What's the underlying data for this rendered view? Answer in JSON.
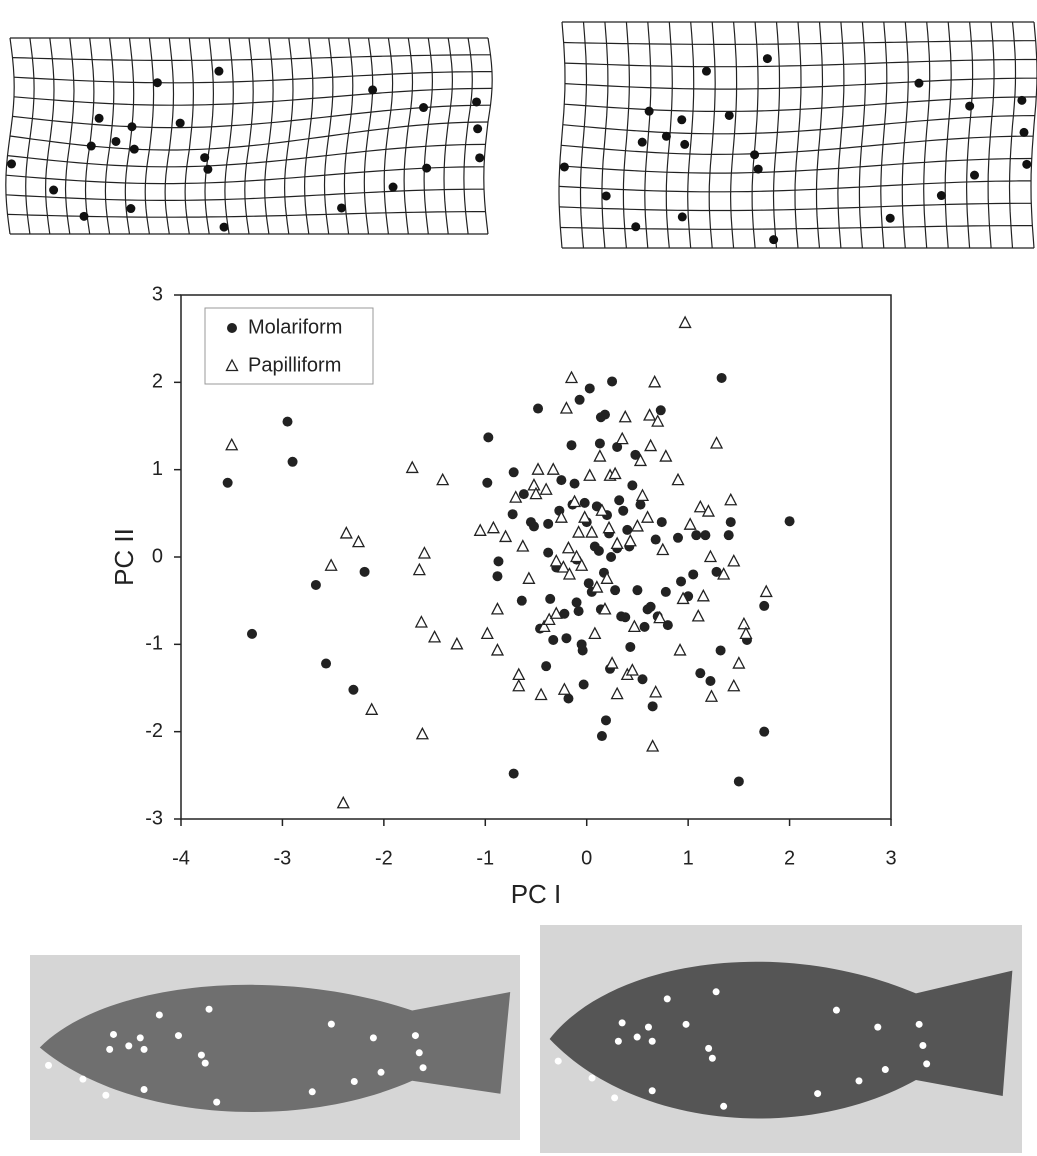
{
  "chart_data": {
    "type": "scatter",
    "x_label": "PC I",
    "y_label": "PC II",
    "xlim": [
      -4,
      3
    ],
    "ylim": [
      -3,
      3
    ],
    "xticks": [
      -4,
      -3,
      -2,
      -1,
      0,
      1,
      2,
      3
    ],
    "yticks": [
      -3,
      -2,
      -1,
      0,
      1,
      2,
      3
    ],
    "legend": "upper-left",
    "series": [
      {
        "name": "Molariform",
        "color": "#222222",
        "marker": "circle",
        "x": [
          -3.54,
          -2.95,
          -2.9,
          -3.3,
          -2.67,
          -2.57,
          -2.3,
          -2.19,
          -0.97,
          -0.98,
          -0.87,
          -0.88,
          -0.72,
          -0.73,
          -0.72,
          -0.64,
          -0.62,
          -0.55,
          -0.52,
          -0.48,
          -0.46,
          -0.4,
          -0.38,
          -0.38,
          -0.36,
          -0.33,
          -0.3,
          -0.27,
          -0.25,
          -0.22,
          -0.2,
          -0.18,
          -0.15,
          -0.14,
          -0.12,
          -0.1,
          -0.1,
          -0.08,
          -0.07,
          -0.05,
          -0.04,
          -0.03,
          -0.02,
          0.0,
          0.02,
          0.03,
          0.05,
          0.08,
          0.1,
          0.12,
          0.13,
          0.14,
          0.14,
          0.15,
          0.17,
          0.18,
          0.19,
          0.2,
          0.22,
          0.24,
          0.25,
          0.23,
          0.28,
          0.3,
          0.3,
          0.32,
          0.34,
          0.36,
          0.38,
          0.4,
          0.42,
          0.43,
          0.45,
          0.48,
          0.5,
          0.53,
          0.55,
          0.57,
          0.6,
          0.63,
          0.65,
          0.68,
          0.7,
          0.73,
          0.74,
          0.78,
          0.8,
          0.9,
          0.93,
          1.0,
          1.05,
          1.08,
          1.12,
          1.17,
          1.22,
          1.28,
          1.33,
          1.32,
          1.4,
          1.42,
          1.5,
          1.58,
          1.75,
          1.75,
          2.0
        ],
        "values": [
          0.85,
          1.55,
          1.09,
          -0.88,
          -0.32,
          -1.22,
          -1.52,
          -0.17,
          1.37,
          0.85,
          -0.05,
          -0.22,
          0.97,
          0.49,
          -2.48,
          -0.5,
          0.72,
          0.4,
          0.35,
          1.7,
          -0.82,
          -1.25,
          0.38,
          0.05,
          -0.48,
          -0.95,
          -0.12,
          0.53,
          0.88,
          -0.65,
          -0.93,
          -1.62,
          1.28,
          0.6,
          0.84,
          -0.52,
          -0.03,
          -0.62,
          1.8,
          -1.0,
          -1.07,
          -1.46,
          0.62,
          0.4,
          -0.3,
          1.93,
          -0.4,
          0.12,
          0.58,
          0.07,
          1.3,
          1.6,
          -0.6,
          -2.05,
          -0.18,
          1.63,
          -1.87,
          0.48,
          0.27,
          0.0,
          2.01,
          -1.28,
          -0.38,
          0.1,
          1.26,
          0.65,
          -0.68,
          0.53,
          -0.69,
          0.31,
          0.12,
          -1.03,
          0.82,
          1.17,
          -0.38,
          0.6,
          -1.4,
          -0.8,
          -0.6,
          -0.57,
          -1.71,
          0.2,
          -0.68,
          1.68,
          0.4,
          -0.4,
          -0.78,
          0.22,
          -0.28,
          -0.45,
          -0.2,
          0.25,
          -1.33,
          0.25,
          -1.42,
          -0.17,
          2.05,
          -1.07,
          0.25,
          0.4,
          -2.57,
          -0.95,
          -0.56,
          -2.0,
          0.41
        ]
      },
      {
        "name": "Papilliform",
        "color": "#222222",
        "marker": "triangle",
        "x": [
          -3.5,
          -2.37,
          -2.4,
          -2.52,
          -2.25,
          -2.12,
          -1.72,
          -1.65,
          -1.63,
          -1.6,
          -1.62,
          -1.5,
          -1.42,
          -1.28,
          -1.05,
          -0.98,
          -0.92,
          -0.88,
          -0.88,
          -0.8,
          -0.7,
          -0.67,
          -0.67,
          -0.63,
          -0.57,
          -0.52,
          -0.5,
          -0.48,
          -0.45,
          -0.42,
          -0.4,
          -0.37,
          -0.33,
          -0.3,
          -0.3,
          -0.25,
          -0.23,
          -0.22,
          -0.2,
          -0.18,
          -0.17,
          -0.15,
          -0.12,
          -0.1,
          -0.08,
          -0.05,
          -0.02,
          0.03,
          0.05,
          0.08,
          0.1,
          0.13,
          0.15,
          0.18,
          0.2,
          0.22,
          0.23,
          0.25,
          0.28,
          0.3,
          0.3,
          0.35,
          0.38,
          0.4,
          0.43,
          0.45,
          0.47,
          0.5,
          0.53,
          0.55,
          0.6,
          0.62,
          0.63,
          0.65,
          0.67,
          0.68,
          0.7,
          0.72,
          0.75,
          0.78,
          0.9,
          0.92,
          0.95,
          0.97,
          1.02,
          1.1,
          1.12,
          1.15,
          1.2,
          1.22,
          1.23,
          1.28,
          1.35,
          1.42,
          1.45,
          1.5,
          1.55,
          1.57,
          1.77,
          1.45
        ],
        "values": [
          1.28,
          0.27,
          -2.82,
          -0.1,
          0.17,
          -1.75,
          1.02,
          -0.15,
          -0.75,
          0.04,
          -2.03,
          -0.92,
          0.88,
          -1.0,
          0.3,
          -0.88,
          0.33,
          -0.6,
          -1.07,
          0.23,
          0.68,
          -1.35,
          -1.48,
          0.12,
          -0.25,
          0.82,
          0.72,
          1.0,
          -1.58,
          -0.8,
          0.77,
          -0.72,
          1.0,
          -0.65,
          -0.05,
          0.45,
          -0.12,
          -1.52,
          1.7,
          0.1,
          -0.2,
          2.05,
          0.63,
          0.0,
          0.28,
          -0.1,
          0.45,
          0.93,
          0.28,
          -0.88,
          -0.35,
          1.15,
          0.53,
          -0.6,
          -0.25,
          0.33,
          0.93,
          -1.22,
          0.95,
          0.15,
          -1.57,
          1.35,
          1.6,
          -1.35,
          0.18,
          -1.3,
          -0.8,
          0.35,
          1.1,
          0.7,
          0.45,
          1.62,
          1.27,
          -2.17,
          2.0,
          -1.55,
          1.55,
          -0.7,
          0.08,
          1.15,
          0.88,
          -1.07,
          -0.48,
          2.68,
          0.37,
          -0.68,
          0.57,
          -0.45,
          0.52,
          0.0,
          -1.6,
          1.3,
          -0.2,
          0.65,
          -1.48,
          -1.22,
          -0.77,
          -0.88,
          -0.4,
          -0.05
        ]
      }
    ]
  }
}
